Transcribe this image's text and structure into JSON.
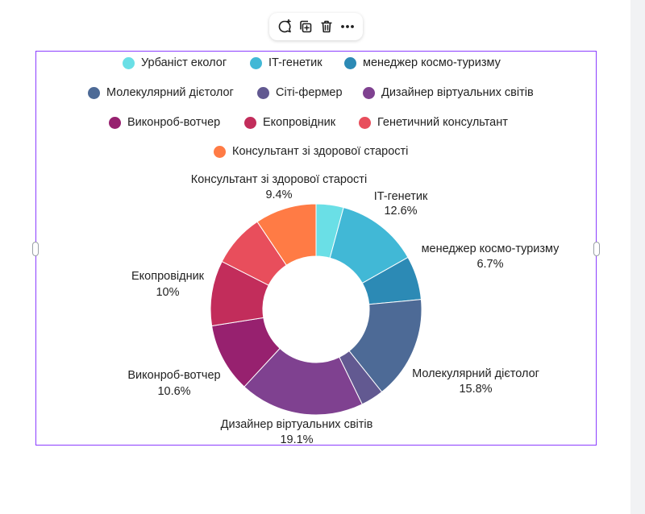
{
  "chart_data": {
    "type": "pie",
    "donut": true,
    "legend_position": "top",
    "categories": [
      "Урбаніст еколог",
      "IT-генетик",
      "менеджер космо-туризму",
      "Молекулярний дієтолог",
      "Сіті-фермер",
      "Дизайнер віртуальних світів",
      "Виконроб-вотчер",
      "Екопровідник",
      "Генетичний консультант",
      "Консультант зі здорової старості"
    ],
    "values": [
      4.2,
      12.6,
      6.7,
      15.8,
      3.5,
      19.1,
      10.6,
      10.0,
      8.1,
      9.4
    ],
    "colors": [
      "#6adfe6",
      "#41b8d6",
      "#2c8ab5",
      "#4d6a96",
      "#625991",
      "#7f4190",
      "#97216f",
      "#c22d5b",
      "#e84e5c",
      "#ff7b45"
    ],
    "slice_labels": [
      {
        "name": "Консультант зі здорової старості",
        "value": "9.4%"
      },
      {
        "name": "IT-генетик",
        "value": "12.6%"
      },
      {
        "name": "менеджер космо-туризму",
        "value": "6.7%"
      },
      {
        "name": "Екопровідник",
        "value": "10%"
      },
      {
        "name": "Молекулярний дієтолог",
        "value": "15.8%"
      },
      {
        "name": "Виконроб-вотчер",
        "value": "10.6%"
      },
      {
        "name": "Дизайнер віртуальних світів",
        "value": "19.1%"
      }
    ]
  },
  "toolbar": {
    "icons": [
      "comment-add-icon",
      "duplicate-icon",
      "trash-icon",
      "more-icon"
    ]
  }
}
